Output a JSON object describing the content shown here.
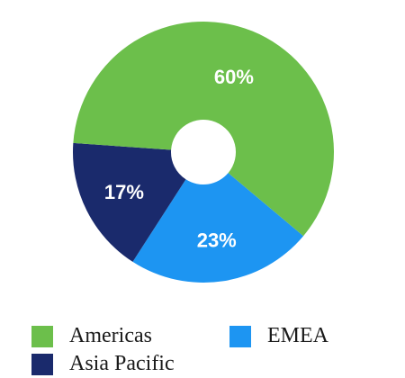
{
  "chart_data": {
    "type": "pie",
    "categories": [
      "Americas",
      "EMEA",
      "Asia Pacific"
    ],
    "values": [
      60,
      23,
      17
    ],
    "data_labels": [
      "60%",
      "23%",
      "17%"
    ],
    "colors": [
      "#6cbf4b",
      "#1d95f2",
      "#1a2a6c"
    ],
    "donut": true,
    "legend_position": "bottom"
  }
}
